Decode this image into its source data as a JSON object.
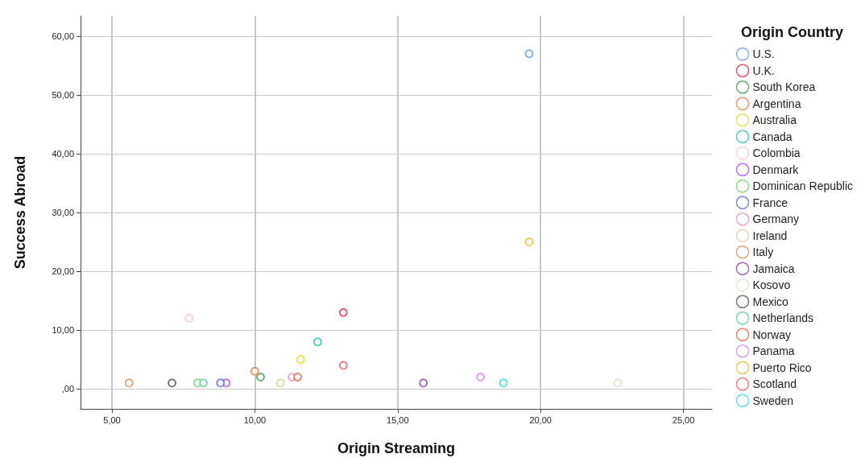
{
  "chart_data": {
    "type": "scatter",
    "xlabel": "Origin Streaming",
    "ylabel": "Success Abroad",
    "legend_title": "Origin Country",
    "xlim": [
      3.9,
      26.0
    ],
    "ylim": [
      -3.4,
      63.4
    ],
    "xticks": [
      {
        "value": 5,
        "label": "5,00"
      },
      {
        "value": 10,
        "label": "10,00"
      },
      {
        "value": 15,
        "label": "15,00"
      },
      {
        "value": 20,
        "label": "20,00"
      },
      {
        "value": 25,
        "label": "25,00"
      }
    ],
    "yticks": [
      {
        "value": 0,
        "label": ",00"
      },
      {
        "value": 10,
        "label": "10,00"
      },
      {
        "value": 20,
        "label": "20,00"
      },
      {
        "value": 30,
        "label": "30,00"
      },
      {
        "value": 40,
        "label": "40,00"
      },
      {
        "value": 50,
        "label": "50,00"
      },
      {
        "value": 60,
        "label": "60,00"
      }
    ],
    "grid": true,
    "legend": "right",
    "marker": "circle",
    "series": [
      {
        "name": "U.S.",
        "color": "#6b9ce6",
        "x": [
          19.6
        ],
        "values": [
          57
        ]
      },
      {
        "name": "U.K.",
        "color": "#e0304f",
        "x": [
          13.1
        ],
        "values": [
          13
        ]
      },
      {
        "name": "South Korea",
        "color": "#3e9e4a",
        "x": [
          10.2
        ],
        "values": [
          2
        ]
      },
      {
        "name": "Argentina",
        "color": "#f07c4a",
        "x": [
          10.0
        ],
        "values": [
          3
        ]
      },
      {
        "name": "Australia",
        "color": "#e8d432",
        "x": [
          11.6
        ],
        "values": [
          5
        ]
      },
      {
        "name": "Canada",
        "color": "#2bc0b0",
        "x": [
          12.2
        ],
        "values": [
          8
        ]
      },
      {
        "name": "Colombia",
        "color": "#ffc4dc",
        "x": [
          7.7
        ],
        "values": [
          12
        ]
      },
      {
        "name": "Denmark",
        "color": "#b04cf0",
        "x": [
          9.0
        ],
        "values": [
          1
        ]
      },
      {
        "name": "Dominican Republic",
        "color": "#6fd36a",
        "x": [
          8.0
        ],
        "values": [
          1
        ]
      },
      {
        "name": "France",
        "color": "#5a6fc4",
        "x": [
          8.8
        ],
        "values": [
          1
        ]
      },
      {
        "name": "Germany",
        "color": "#f390b4",
        "x": [
          11.3
        ],
        "values": [
          2
        ]
      },
      {
        "name": "Ireland",
        "color": "#d8d0a0",
        "x": [
          10.9
        ],
        "values": [
          1
        ]
      },
      {
        "name": "Italy",
        "color": "#d09560",
        "x": [
          5.6
        ],
        "values": [
          1
        ]
      },
      {
        "name": "Jamaica",
        "color": "#8a4aa8",
        "x": [
          15.9
        ],
        "values": [
          1
        ]
      },
      {
        "name": "Kosovo",
        "color": "#e6dfc8",
        "x": [
          22.7
        ],
        "values": [
          1
        ]
      },
      {
        "name": "Mexico",
        "color": "#555555",
        "x": [
          7.1
        ],
        "values": [
          1
        ]
      },
      {
        "name": "Netherlands",
        "color": "#5ccc9a",
        "x": [
          8.2
        ],
        "values": [
          1
        ]
      },
      {
        "name": "Norway",
        "color": "#e0664c",
        "x": [
          11.5
        ],
        "values": [
          2
        ]
      },
      {
        "name": "Panama",
        "color": "#d28ae8",
        "x": [
          17.9
        ],
        "values": [
          2
        ]
      },
      {
        "name": "Puerto Rico",
        "color": "#e8c030",
        "x": [
          19.6
        ],
        "values": [
          25
        ]
      },
      {
        "name": "Scotland",
        "color": "#f06060",
        "x": [
          13.1
        ],
        "values": [
          4
        ]
      },
      {
        "name": "Sweden",
        "color": "#3cd8d8",
        "x": [
          18.7
        ],
        "values": [
          1
        ]
      }
    ]
  }
}
